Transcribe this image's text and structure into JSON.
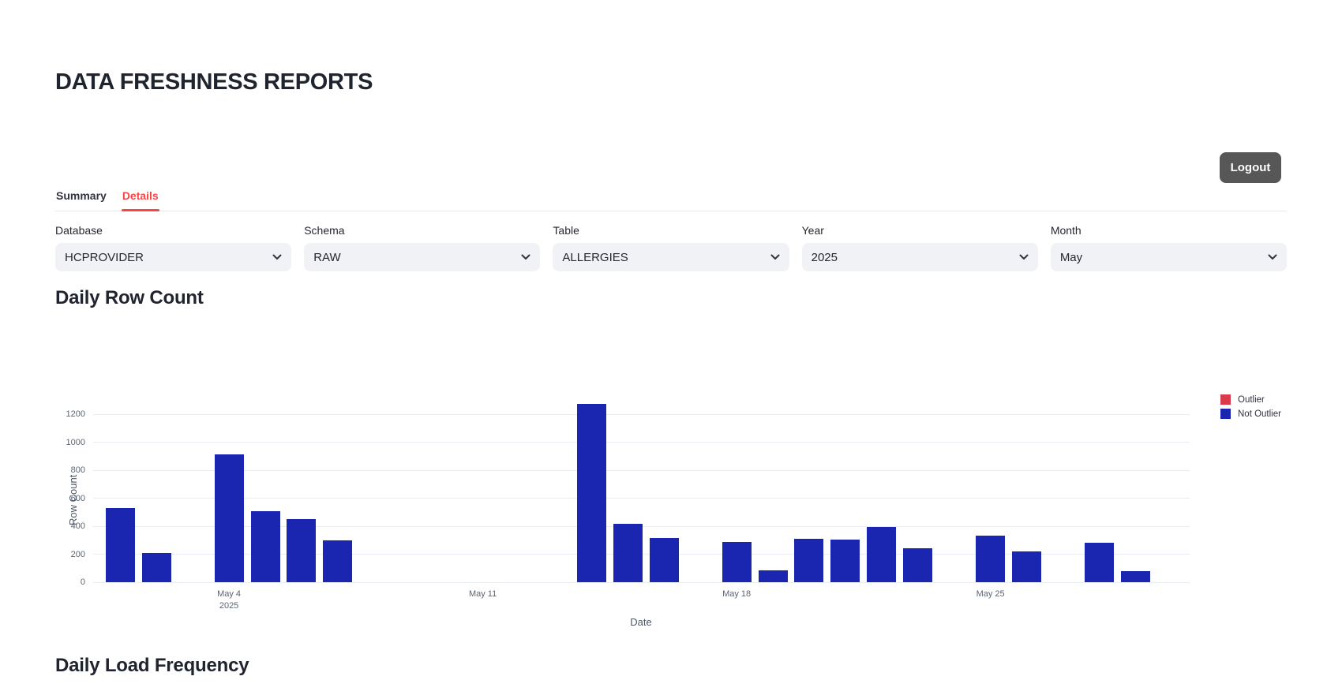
{
  "page": {
    "title": "DATA FRESHNESS REPORTS"
  },
  "header": {
    "logout_label": "Logout"
  },
  "tabs": [
    {
      "label": "Summary",
      "active": false
    },
    {
      "label": "Details",
      "active": true
    }
  ],
  "filters": [
    {
      "label": "Database",
      "value": "HCPROVIDER"
    },
    {
      "label": "Schema",
      "value": "RAW"
    },
    {
      "label": "Table",
      "value": "ALLERGIES"
    },
    {
      "label": "Year",
      "value": "2025"
    },
    {
      "label": "Month",
      "value": "May"
    }
  ],
  "sections": {
    "row_count_title": "Daily Row Count",
    "load_frequency_title": "Daily Load Frequency"
  },
  "colors": {
    "accent_red": "#fa4545",
    "bar_blue": "#1a25b0",
    "legend_red": "#d93b4b",
    "logout_gray": "#575757",
    "select_bg": "#f0f2f6"
  },
  "chart_data": {
    "type": "bar",
    "title": "Daily Row Count",
    "xlabel": "Date",
    "ylabel": "Row Count",
    "ylim": [
      0,
      1280
    ],
    "grid": true,
    "legend_position": "right-top",
    "yticks": [
      0,
      200,
      400,
      600,
      800,
      1000,
      1200
    ],
    "xticks": [
      {
        "label": "May 4",
        "sublabel": "2025",
        "day": 4
      },
      {
        "label": "May 11",
        "sublabel": "",
        "day": 11
      },
      {
        "label": "May 18",
        "sublabel": "",
        "day": 18
      },
      {
        "label": "May 25",
        "sublabel": "",
        "day": 25
      }
    ],
    "legend": [
      {
        "label": "Outlier",
        "color": "#d93b4b"
      },
      {
        "label": "Not Outlier",
        "color": "#1a25b0"
      }
    ],
    "series": [
      {
        "name": "Not Outlier",
        "points": [
          {
            "label": "May 1",
            "day": 1,
            "value": 530
          },
          {
            "label": "May 2",
            "day": 2,
            "value": 210
          },
          {
            "label": "May 4",
            "day": 4,
            "value": 910
          },
          {
            "label": "May 5",
            "day": 5,
            "value": 505
          },
          {
            "label": "May 6",
            "day": 6,
            "value": 450
          },
          {
            "label": "May 7",
            "day": 7,
            "value": 300
          },
          {
            "label": "May 14",
            "day": 14,
            "value": 1275
          },
          {
            "label": "May 15",
            "day": 15,
            "value": 415
          },
          {
            "label": "May 16",
            "day": 16,
            "value": 315
          },
          {
            "label": "May 18",
            "day": 18,
            "value": 290
          },
          {
            "label": "May 19",
            "day": 19,
            "value": 85
          },
          {
            "label": "May 20",
            "day": 20,
            "value": 310
          },
          {
            "label": "May 21",
            "day": 21,
            "value": 305
          },
          {
            "label": "May 22",
            "day": 22,
            "value": 395
          },
          {
            "label": "May 23",
            "day": 23,
            "value": 245
          },
          {
            "label": "May 25",
            "day": 25,
            "value": 335
          },
          {
            "label": "May 26",
            "day": 26,
            "value": 220
          },
          {
            "label": "May 28",
            "day": 28,
            "value": 280
          },
          {
            "label": "May 29",
            "day": 29,
            "value": 80
          }
        ]
      }
    ]
  }
}
